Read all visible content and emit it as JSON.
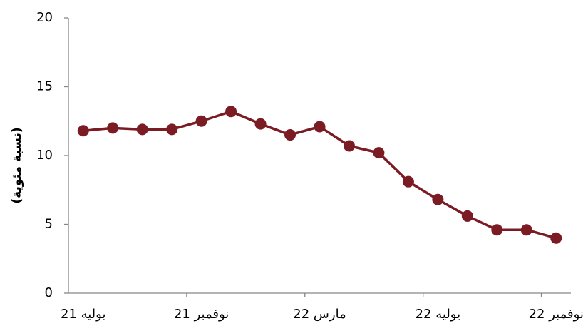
{
  "chart_data": {
    "type": "line",
    "y_label": "(نسبة مئوية)",
    "categories": [
      "يوليه 21",
      null,
      null,
      null,
      "نوفمبر 21",
      null,
      null,
      null,
      "مارس 22",
      null,
      null,
      null,
      "يوليه 22",
      null,
      null,
      null,
      "نوفمبر 22"
    ],
    "series": [
      {
        "name": "نسبة",
        "color": "#7b1c24",
        "values": [
          11.8,
          12.0,
          11.9,
          11.9,
          12.5,
          13.2,
          12.3,
          11.5,
          12.1,
          10.7,
          10.2,
          8.1,
          6.8,
          5.6,
          4.6,
          4.6,
          4.0
        ]
      }
    ],
    "ylim": [
      0,
      20
    ],
    "yticks": [
      0,
      5,
      10,
      15,
      20
    ],
    "grid": false
  }
}
